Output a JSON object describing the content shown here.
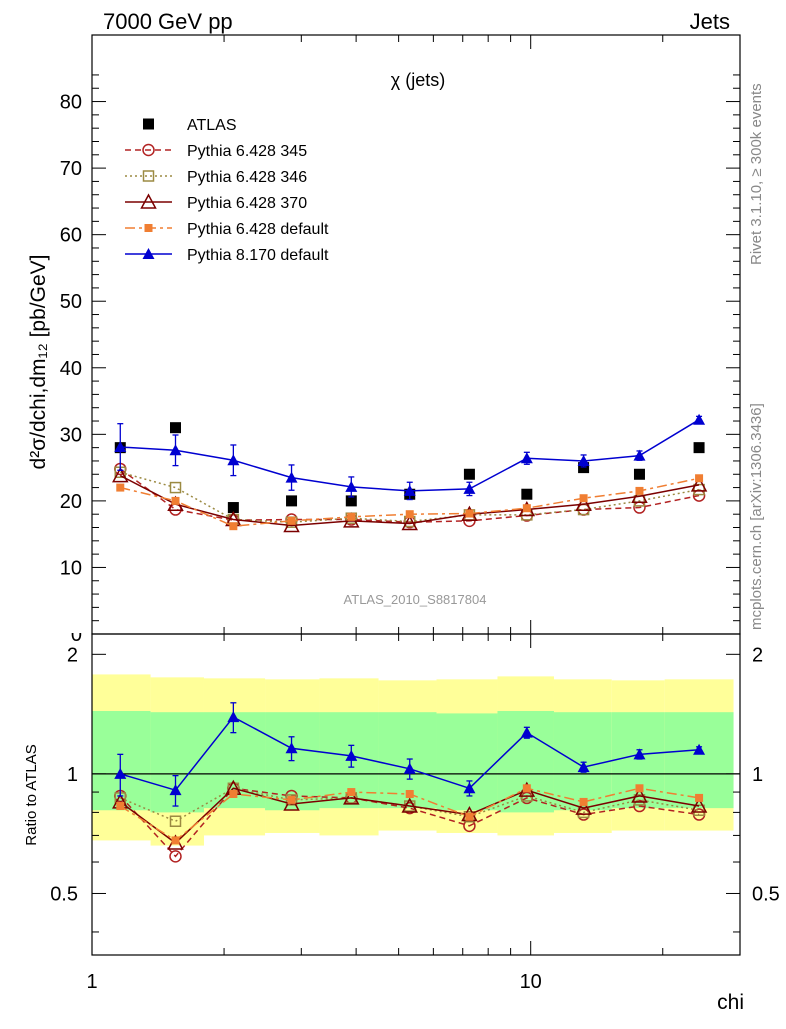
{
  "header": {
    "left": "7000 GeV pp",
    "right": "Jets"
  },
  "side_text": {
    "rivet": "Rivet 3.1.10, ≥ 300k events",
    "mcplots": "mcplots.cern.ch [arXiv:1306.3436]"
  },
  "chart_data": [
    {
      "type": "scatter",
      "title": "χ (jets)",
      "ylabel": "d²σ/dchi,dm₁₂ [pb/GeV]",
      "watermark": "ATLAS_2010_S8817804",
      "x_scale": "log",
      "xlim": [
        1,
        30
      ],
      "ylim": [
        0,
        90
      ],
      "yticks": [
        0,
        10,
        20,
        30,
        40,
        50,
        60,
        70,
        80
      ],
      "x": [
        1.16,
        1.55,
        2.1,
        2.85,
        3.9,
        5.3,
        7.25,
        9.8,
        13.2,
        17.7,
        24.2
      ],
      "series": [
        {
          "name": "ATLAS",
          "color": "#000000",
          "marker": "square",
          "line": "none",
          "values": [
            28,
            31,
            19,
            20,
            20,
            21,
            24,
            21,
            25,
            24,
            28
          ]
        },
        {
          "name": "Pythia 6.428 345",
          "color": "#b22222",
          "marker": "open-circle",
          "line": "dashed",
          "values": [
            24.8,
            18.7,
            17.1,
            17.2,
            17.2,
            16.8,
            17.0,
            17.8,
            18.7,
            19.0,
            20.8
          ]
        },
        {
          "name": "Pythia 6.428 346",
          "color": "#9b8a42",
          "marker": "open-square",
          "line": "dotted",
          "values": [
            24.3,
            22.0,
            17.2,
            16.8,
            17.4,
            16.9,
            17.9,
            17.9,
            18.7,
            20.0,
            21.7
          ]
        },
        {
          "name": "Pythia 6.428 370",
          "color": "#7b0000",
          "marker": "open-triangle",
          "line": "solid",
          "values": [
            23.8,
            19.5,
            17.2,
            16.3,
            17.0,
            16.6,
            18.0,
            18.7,
            19.5,
            20.7,
            22.4
          ]
        },
        {
          "name": "Pythia 6.428 default",
          "color": "#f07e32",
          "marker": "filled-square",
          "line": "dashdot",
          "values": [
            22.0,
            20.0,
            16.2,
            17.0,
            17.6,
            18.0,
            18.1,
            18.9,
            20.4,
            21.5,
            23.4
          ]
        },
        {
          "name": "Pythia 8.170 default",
          "color": "#0000d0",
          "marker": "filled-triangle",
          "line": "solid",
          "values": [
            28.1,
            27.6,
            26.1,
            23.5,
            22.1,
            21.5,
            21.8,
            26.4,
            26.0,
            26.8,
            32.2
          ],
          "errors": [
            3.5,
            2.3,
            2.3,
            1.9,
            1.5,
            1.3,
            1.0,
            0.9,
            0.9,
            0.7,
            0.5
          ]
        }
      ]
    },
    {
      "type": "line",
      "ylabel": "Ratio to ATLAS",
      "xlabel": "chi",
      "x_scale": "log",
      "xlim": [
        1,
        30
      ],
      "ylim": [
        0.35,
        2.25
      ],
      "yticks": [
        0.5,
        1,
        2
      ],
      "xticks": [
        1,
        10
      ],
      "reference": 1,
      "band_edges": [
        1,
        1.36,
        1.8,
        2.48,
        3.3,
        4.5,
        6.1,
        8.4,
        11.3,
        15.3,
        20.2,
        29
      ],
      "band_yellow": [
        [
          0.68,
          1.78
        ],
        [
          0.66,
          1.75
        ],
        [
          0.7,
          1.74
        ],
        [
          0.71,
          1.73
        ],
        [
          0.7,
          1.74
        ],
        [
          0.72,
          1.72
        ],
        [
          0.71,
          1.73
        ],
        [
          0.7,
          1.76
        ],
        [
          0.71,
          1.73
        ],
        [
          0.72,
          1.72
        ],
        [
          0.72,
          1.73
        ]
      ],
      "band_green": [
        [
          0.81,
          1.44
        ],
        [
          0.8,
          1.43
        ],
        [
          0.82,
          1.43
        ],
        [
          0.81,
          1.43
        ],
        [
          0.82,
          1.43
        ],
        [
          0.82,
          1.43
        ],
        [
          0.81,
          1.42
        ],
        [
          0.8,
          1.44
        ],
        [
          0.81,
          1.43
        ],
        [
          0.82,
          1.43
        ],
        [
          0.82,
          1.43
        ]
      ],
      "series": [
        {
          "name": "Pythia 6.428 345",
          "values": [
            0.88,
            0.62,
            0.92,
            0.88,
            0.87,
            0.82,
            0.74,
            0.87,
            0.79,
            0.83,
            0.79
          ]
        },
        {
          "name": "Pythia 6.428 346",
          "values": [
            0.87,
            0.76,
            0.92,
            0.86,
            0.87,
            0.83,
            0.78,
            0.88,
            0.8,
            0.86,
            0.81
          ]
        },
        {
          "name": "Pythia 6.428 370",
          "values": [
            0.85,
            0.67,
            0.92,
            0.84,
            0.87,
            0.83,
            0.79,
            0.91,
            0.82,
            0.88,
            0.83
          ]
        },
        {
          "name": "Pythia 6.428 default",
          "values": [
            0.83,
            0.68,
            0.89,
            0.86,
            0.9,
            0.89,
            0.78,
            0.92,
            0.85,
            0.92,
            0.87
          ]
        },
        {
          "name": "Pythia 8.170 default",
          "values": [
            1.0,
            0.91,
            1.39,
            1.16,
            1.11,
            1.03,
            0.92,
            1.27,
            1.04,
            1.12,
            1.15
          ],
          "errors": [
            0.12,
            0.08,
            0.12,
            0.08,
            0.07,
            0.06,
            0.04,
            0.04,
            0.03,
            0.03,
            0.02
          ]
        }
      ]
    }
  ]
}
